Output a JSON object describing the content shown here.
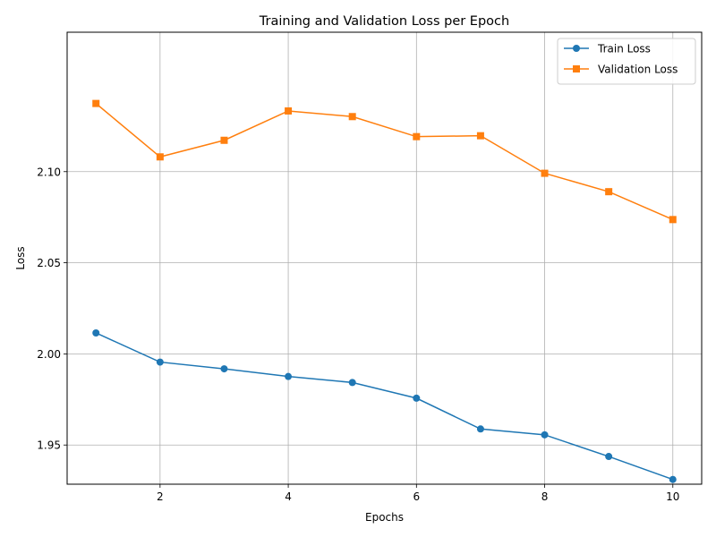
{
  "chart_data": {
    "type": "line",
    "title": "Training and Validation Loss per Epoch",
    "xlabel": "Epochs",
    "ylabel": "Loss",
    "x": [
      1,
      2,
      3,
      4,
      5,
      6,
      7,
      8,
      9,
      10
    ],
    "xlim": [
      0.55,
      10.45
    ],
    "ylim": [
      1.9285,
      2.1765
    ],
    "xticks": [
      2,
      4,
      6,
      8,
      10
    ],
    "xtick_labels": [
      "2",
      "4",
      "6",
      "8",
      "10"
    ],
    "yticks": [
      1.95,
      2.0,
      2.05,
      2.1
    ],
    "ytick_labels": [
      "1.95",
      "2.00",
      "2.05",
      "2.10"
    ],
    "grid": true,
    "legend_position": "top-right",
    "series": [
      {
        "name": "Train Loss",
        "color": "#1f77b4",
        "marker": "circle",
        "values": [
          2.0115,
          1.9955,
          1.9918,
          1.9876,
          1.9843,
          1.9757,
          1.9588,
          1.9556,
          1.9437,
          1.9311
        ]
      },
      {
        "name": "Validation Loss",
        "color": "#ff7f0e",
        "marker": "square",
        "values": [
          2.1374,
          2.1081,
          2.1172,
          2.1333,
          2.1302,
          2.1192,
          2.1197,
          2.0991,
          2.089,
          2.0737
        ]
      }
    ]
  }
}
